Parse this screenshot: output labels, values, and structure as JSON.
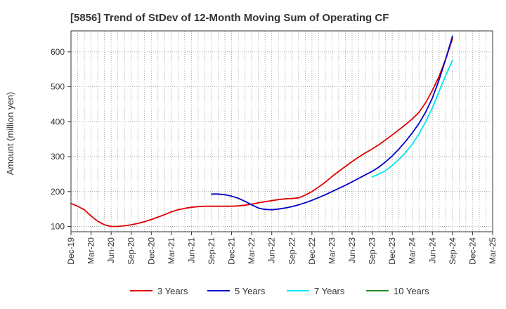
{
  "chart_data": {
    "type": "line",
    "title": "[5856]  Trend of StDev of 12-Month Moving Sum of Operating CF",
    "xlabel": "",
    "ylabel": "Amount (million yen)",
    "x_ticks": [
      "Dec-19",
      "Mar-20",
      "Jun-20",
      "Sep-20",
      "Dec-20",
      "Mar-21",
      "Jun-21",
      "Sep-21",
      "Dec-21",
      "Mar-22",
      "Jun-22",
      "Sep-22",
      "Dec-22",
      "Mar-23",
      "Jun-23",
      "Sep-23",
      "Dec-23",
      "Mar-24",
      "Jun-24",
      "Sep-24",
      "Dec-24",
      "Mar-25"
    ],
    "y_ticks": [
      100,
      200,
      300,
      400,
      500,
      600
    ],
    "ylim": [
      85,
      660
    ],
    "grid": true,
    "legend_position": "bottom",
    "series": [
      {
        "name": "3 Years",
        "color": "#e00000",
        "x": [
          "Dec-19",
          "Jan-20",
          "Feb-20",
          "Mar-20",
          "Apr-20",
          "May-20",
          "Jun-20",
          "Jul-20",
          "Aug-20",
          "Sep-20",
          "Oct-20",
          "Nov-20",
          "Dec-20",
          "Jan-21",
          "Feb-21",
          "Mar-21",
          "Apr-21",
          "May-21",
          "Jun-21",
          "Jul-21",
          "Aug-21",
          "Sep-21",
          "Oct-21",
          "Nov-21",
          "Dec-21",
          "Jan-22",
          "Feb-22",
          "Mar-22",
          "Apr-22",
          "May-22",
          "Jun-22",
          "Jul-22",
          "Aug-22",
          "Sep-22",
          "Oct-22",
          "Nov-22",
          "Dec-22",
          "Jan-23",
          "Feb-23",
          "Mar-23",
          "Apr-23",
          "May-23",
          "Jun-23",
          "Jul-23",
          "Aug-23",
          "Sep-23",
          "Oct-23",
          "Nov-23",
          "Dec-23",
          "Jan-24",
          "Feb-24",
          "Mar-24",
          "Apr-24",
          "May-24",
          "Jun-24",
          "Jul-24",
          "Aug-24",
          "Sep-24"
        ],
        "values": [
          166,
          158,
          148,
          130,
          115,
          105,
          100,
          100,
          102,
          105,
          109,
          114,
          120,
          127,
          134,
          142,
          148,
          152,
          155,
          157,
          158,
          158,
          158,
          158,
          158,
          159,
          161,
          164,
          168,
          171,
          174,
          177,
          179,
          180,
          182,
          190,
          200,
          213,
          227,
          243,
          258,
          272,
          286,
          299,
          311,
          322,
          334,
          348,
          362,
          377,
          392,
          408,
          427,
          455,
          490,
          530,
          580,
          638
        ]
      },
      {
        "name": "5 Years",
        "color": "#0000cc",
        "x": [
          "Sep-21",
          "Oct-21",
          "Nov-21",
          "Dec-21",
          "Jan-22",
          "Feb-22",
          "Mar-22",
          "Apr-22",
          "May-22",
          "Jun-22",
          "Jul-22",
          "Aug-22",
          "Sep-22",
          "Oct-22",
          "Nov-22",
          "Dec-22",
          "Jan-23",
          "Feb-23",
          "Mar-23",
          "Apr-23",
          "May-23",
          "Jun-23",
          "Jul-23",
          "Aug-23",
          "Sep-23",
          "Oct-23",
          "Nov-23",
          "Dec-23",
          "Jan-24",
          "Feb-24",
          "Mar-24",
          "Apr-24",
          "May-24",
          "Jun-24",
          "Jul-24",
          "Aug-24",
          "Sep-24"
        ],
        "values": [
          193,
          193,
          191,
          187,
          181,
          172,
          162,
          153,
          149,
          148,
          150,
          153,
          157,
          162,
          168,
          175,
          183,
          191,
          200,
          209,
          218,
          228,
          238,
          248,
          258,
          270,
          285,
          302,
          322,
          344,
          368,
          395,
          428,
          468,
          520,
          580,
          645
        ]
      },
      {
        "name": "7 Years",
        "color": "#00e5ee",
        "x": [
          "Sep-23",
          "Oct-23",
          "Nov-23",
          "Dec-23",
          "Jan-24",
          "Feb-24",
          "Mar-24",
          "Apr-24",
          "May-24",
          "Jun-24",
          "Jul-24",
          "Aug-24",
          "Sep-24"
        ],
        "values": [
          242,
          250,
          260,
          275,
          292,
          312,
          336,
          365,
          400,
          440,
          487,
          533,
          576
        ]
      },
      {
        "name": "10 Years",
        "color": "#228b22",
        "x": [],
        "values": []
      }
    ]
  }
}
